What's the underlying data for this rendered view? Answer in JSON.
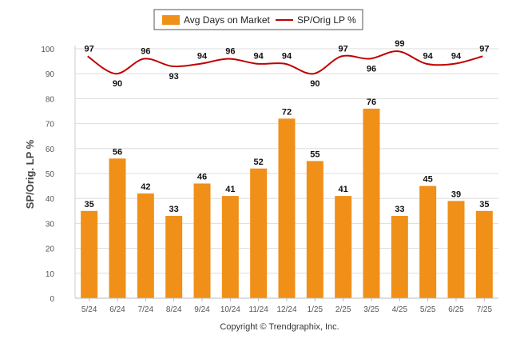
{
  "chart_data": {
    "type": "bar",
    "categories": [
      "5/24",
      "6/24",
      "7/24",
      "8/24",
      "9/24",
      "10/24",
      "11/24",
      "12/24",
      "1/25",
      "2/25",
      "3/25",
      "4/25",
      "5/25",
      "6/25",
      "7/25"
    ],
    "series": [
      {
        "name": "Avg Days on Market",
        "type": "bar",
        "color": "#F09018",
        "values": [
          35,
          56,
          42,
          33,
          46,
          41,
          52,
          72,
          55,
          41,
          76,
          33,
          45,
          39,
          35
        ]
      },
      {
        "name": "SP/Orig LP %",
        "type": "line",
        "color": "#C00000",
        "values": [
          97,
          90,
          96,
          93,
          94,
          96,
          94,
          94,
          90,
          97,
          96,
          99,
          94,
          94,
          97
        ]
      }
    ],
    "ylabel": "SP/Orig. LP %",
    "xlabel": "",
    "ylim": [
      0,
      100
    ],
    "yticks": [
      0,
      10,
      20,
      30,
      40,
      50,
      60,
      70,
      80,
      90,
      100
    ],
    "grid": true,
    "legend": "top-center"
  },
  "legend": {
    "bar_label": "Avg Days on Market",
    "line_label": "SP/Orig LP %"
  },
  "footer": {
    "copyright": "Copyright © Trendgraphix, Inc."
  }
}
